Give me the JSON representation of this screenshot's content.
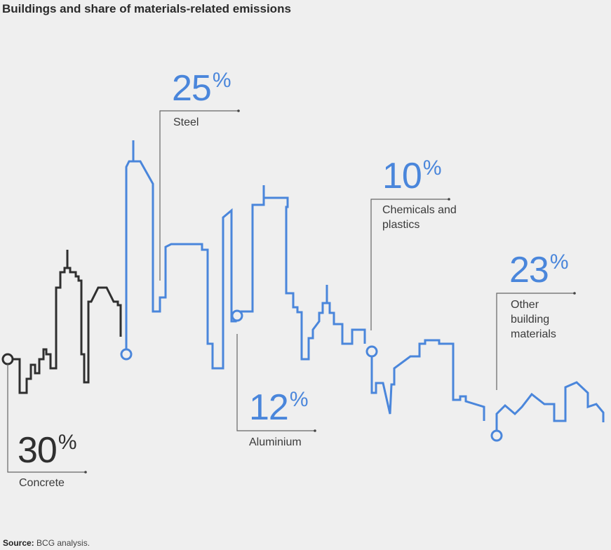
{
  "title": "Buildings and share of materials-related emissions",
  "source": {
    "label": "Source:",
    "text": "BCG analysis."
  },
  "colors": {
    "concrete": "#2f2f2f",
    "accent": "#4a86db",
    "leader": "#555555"
  },
  "chart_data": {
    "type": "pie",
    "title": "Buildings and share of materials-related emissions",
    "unit": "%",
    "series": [
      {
        "name": "Concrete",
        "value": 30,
        "color": "#2f2f2f",
        "label": "Concrete"
      },
      {
        "name": "Steel",
        "value": 25,
        "color": "#4a86db",
        "label": "Steel"
      },
      {
        "name": "Aluminium",
        "value": 12,
        "color": "#4a86db",
        "label": "Aluminium"
      },
      {
        "name": "Chemicals and plastics",
        "value": 10,
        "color": "#4a86db",
        "label": "Chemicals and plastics"
      },
      {
        "name": "Other building materials",
        "value": 23,
        "color": "#4a86db",
        "label": "Other building materials"
      }
    ]
  }
}
